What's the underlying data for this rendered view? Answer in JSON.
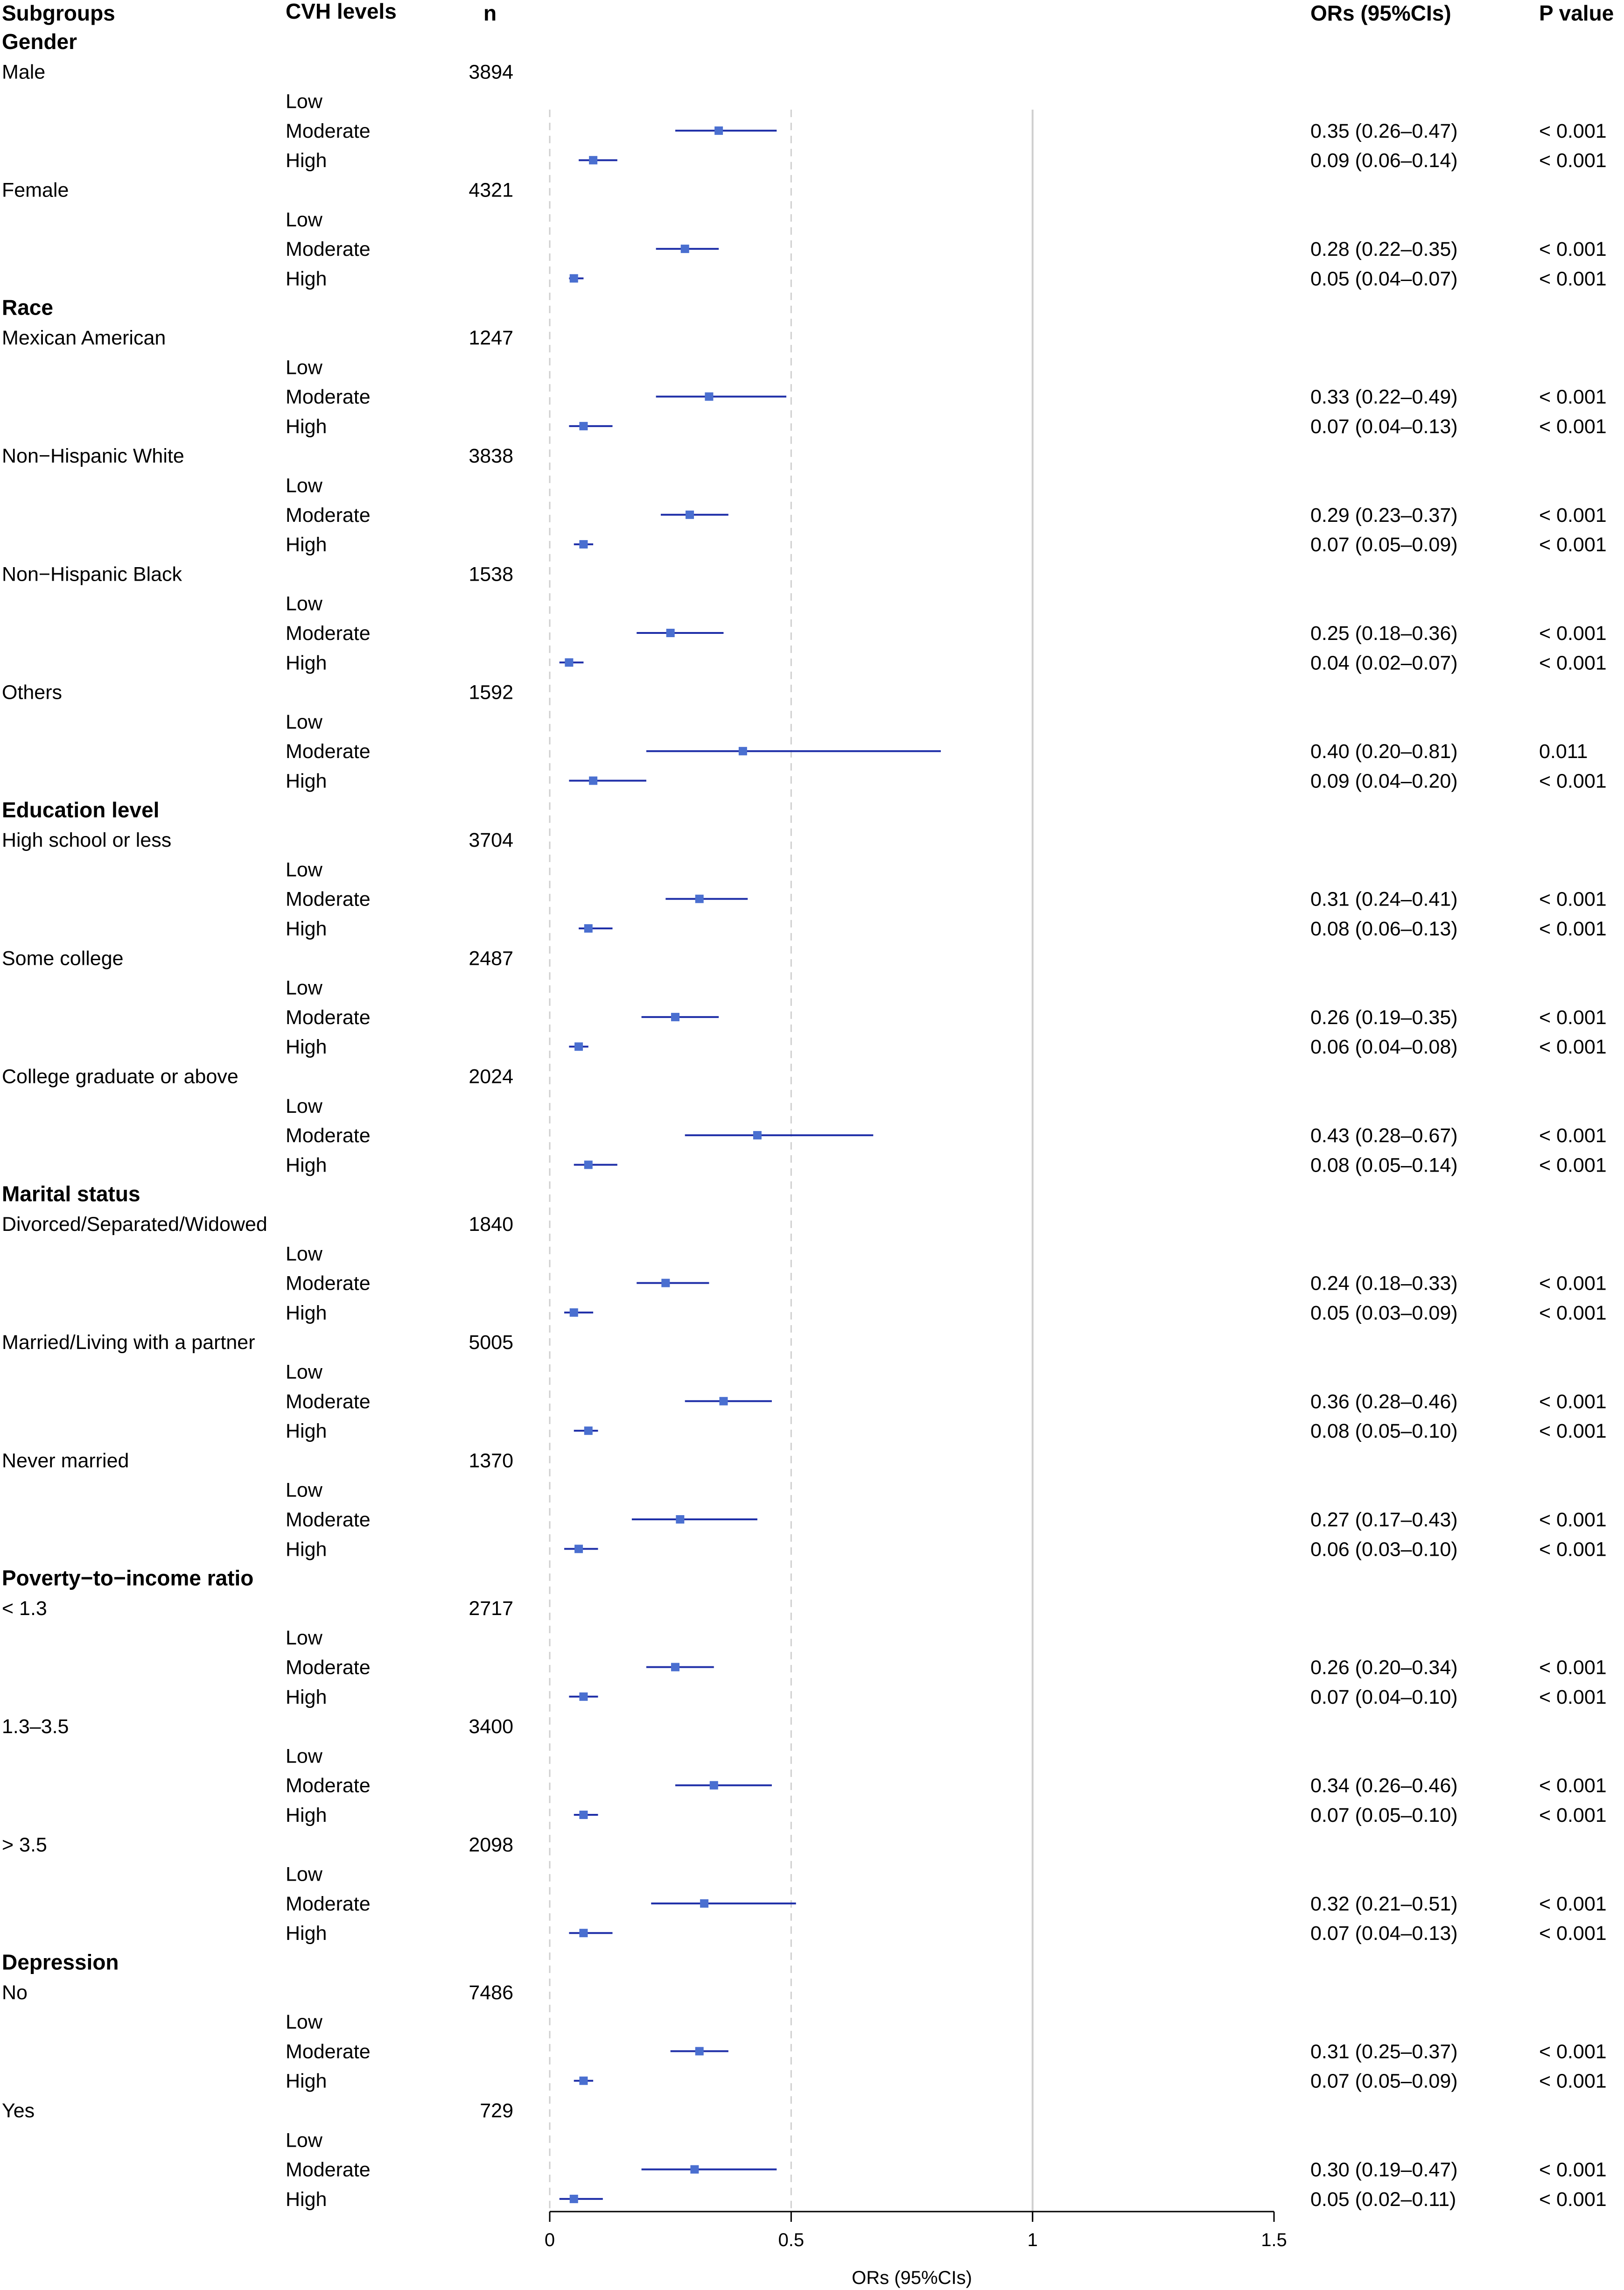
{
  "headers": {
    "subgroups": "Subgroups",
    "cvh_levels": "CVH levels",
    "n": "n",
    "ors": "ORs (95%CIs)",
    "p": "P value"
  },
  "chart_data": {
    "type": "forest",
    "xlabel": "ORs (95%CIs)",
    "xlim": [
      0,
      1.5
    ],
    "xticks": [
      0,
      0.5,
      1,
      1.5
    ],
    "xtick_labels": [
      "0",
      "0.5",
      "1",
      "1.5"
    ],
    "reference_line": 1,
    "dashed_lines": [
      0,
      0.5
    ],
    "marker_color": "#4a6fd0",
    "line_color": "#1f2fa8",
    "groups": [
      {
        "name": "Gender",
        "subgroups": [
          {
            "name": "Male",
            "n": "3894",
            "levels": [
              {
                "level": "Low"
              },
              {
                "level": "Moderate",
                "or": 0.35,
                "lo": 0.26,
                "hi": 0.47,
                "text": "0.35 (0.26–0.47)",
                "p": "< 0.001"
              },
              {
                "level": "High",
                "or": 0.09,
                "lo": 0.06,
                "hi": 0.14,
                "text": "0.09 (0.06–0.14)",
                "p": "< 0.001"
              }
            ]
          },
          {
            "name": "Female",
            "n": "4321",
            "levels": [
              {
                "level": "Low"
              },
              {
                "level": "Moderate",
                "or": 0.28,
                "lo": 0.22,
                "hi": 0.35,
                "text": "0.28 (0.22–0.35)",
                "p": "< 0.001"
              },
              {
                "level": "High",
                "or": 0.05,
                "lo": 0.04,
                "hi": 0.07,
                "text": "0.05 (0.04–0.07)",
                "p": "< 0.001"
              }
            ]
          }
        ]
      },
      {
        "name": "Race",
        "subgroups": [
          {
            "name": "Mexican American",
            "n": "1247",
            "levels": [
              {
                "level": "Low"
              },
              {
                "level": "Moderate",
                "or": 0.33,
                "lo": 0.22,
                "hi": 0.49,
                "text": "0.33 (0.22–0.49)",
                "p": "< 0.001"
              },
              {
                "level": "High",
                "or": 0.07,
                "lo": 0.04,
                "hi": 0.13,
                "text": "0.07 (0.04–0.13)",
                "p": "< 0.001"
              }
            ]
          },
          {
            "name": "Non−Hispanic White",
            "n": "3838",
            "levels": [
              {
                "level": "Low"
              },
              {
                "level": "Moderate",
                "or": 0.29,
                "lo": 0.23,
                "hi": 0.37,
                "text": "0.29 (0.23–0.37)",
                "p": "< 0.001"
              },
              {
                "level": "High",
                "or": 0.07,
                "lo": 0.05,
                "hi": 0.09,
                "text": "0.07 (0.05–0.09)",
                "p": "< 0.001"
              }
            ]
          },
          {
            "name": "Non−Hispanic Black",
            "n": "1538",
            "levels": [
              {
                "level": "Low"
              },
              {
                "level": "Moderate",
                "or": 0.25,
                "lo": 0.18,
                "hi": 0.36,
                "text": "0.25 (0.18–0.36)",
                "p": "< 0.001"
              },
              {
                "level": "High",
                "or": 0.04,
                "lo": 0.02,
                "hi": 0.07,
                "text": "0.04 (0.02–0.07)",
                "p": "< 0.001"
              }
            ]
          },
          {
            "name": "Others",
            "n": "1592",
            "levels": [
              {
                "level": "Low"
              },
              {
                "level": "Moderate",
                "or": 0.4,
                "lo": 0.2,
                "hi": 0.81,
                "text": "0.40 (0.20–0.81)",
                "p": "0.011"
              },
              {
                "level": "High",
                "or": 0.09,
                "lo": 0.04,
                "hi": 0.2,
                "text": "0.09 (0.04–0.20)",
                "p": "< 0.001"
              }
            ]
          }
        ]
      },
      {
        "name": "Education level",
        "subgroups": [
          {
            "name": "High school or less",
            "n": "3704",
            "levels": [
              {
                "level": "Low"
              },
              {
                "level": "Moderate",
                "or": 0.31,
                "lo": 0.24,
                "hi": 0.41,
                "text": "0.31 (0.24–0.41)",
                "p": "< 0.001"
              },
              {
                "level": "High",
                "or": 0.08,
                "lo": 0.06,
                "hi": 0.13,
                "text": "0.08 (0.06–0.13)",
                "p": "< 0.001"
              }
            ]
          },
          {
            "name": "Some college",
            "n": "2487",
            "levels": [
              {
                "level": "Low"
              },
              {
                "level": "Moderate",
                "or": 0.26,
                "lo": 0.19,
                "hi": 0.35,
                "text": "0.26 (0.19–0.35)",
                "p": "< 0.001"
              },
              {
                "level": "High",
                "or": 0.06,
                "lo": 0.04,
                "hi": 0.08,
                "text": "0.06 (0.04–0.08)",
                "p": "< 0.001"
              }
            ]
          },
          {
            "name": "College graduate or above",
            "n": "2024",
            "levels": [
              {
                "level": "Low"
              },
              {
                "level": "Moderate",
                "or": 0.43,
                "lo": 0.28,
                "hi": 0.67,
                "text": "0.43 (0.28–0.67)",
                "p": "< 0.001"
              },
              {
                "level": "High",
                "or": 0.08,
                "lo": 0.05,
                "hi": 0.14,
                "text": "0.08 (0.05–0.14)",
                "p": "< 0.001"
              }
            ]
          }
        ]
      },
      {
        "name": "Marital status",
        "subgroups": [
          {
            "name": "Divorced/Separated/Widowed",
            "n": "1840",
            "levels": [
              {
                "level": "Low"
              },
              {
                "level": "Moderate",
                "or": 0.24,
                "lo": 0.18,
                "hi": 0.33,
                "text": "0.24 (0.18–0.33)",
                "p": "< 0.001"
              },
              {
                "level": "High",
                "or": 0.05,
                "lo": 0.03,
                "hi": 0.09,
                "text": "0.05 (0.03–0.09)",
                "p": "< 0.001"
              }
            ]
          },
          {
            "name": "Married/Living with a partner",
            "n": "5005",
            "levels": [
              {
                "level": "Low"
              },
              {
                "level": "Moderate",
                "or": 0.36,
                "lo": 0.28,
                "hi": 0.46,
                "text": "0.36 (0.28–0.46)",
                "p": "< 0.001"
              },
              {
                "level": "High",
                "or": 0.08,
                "lo": 0.05,
                "hi": 0.1,
                "text": "0.08 (0.05–0.10)",
                "p": "< 0.001"
              }
            ]
          },
          {
            "name": "Never married",
            "n": "1370",
            "levels": [
              {
                "level": "Low"
              },
              {
                "level": "Moderate",
                "or": 0.27,
                "lo": 0.17,
                "hi": 0.43,
                "text": "0.27 (0.17–0.43)",
                "p": "< 0.001"
              },
              {
                "level": "High",
                "or": 0.06,
                "lo": 0.03,
                "hi": 0.1,
                "text": "0.06 (0.03–0.10)",
                "p": "< 0.001"
              }
            ]
          }
        ]
      },
      {
        "name": "Poverty−to−income ratio",
        "subgroups": [
          {
            "name": "< 1.3",
            "n": "2717",
            "levels": [
              {
                "level": "Low"
              },
              {
                "level": "Moderate",
                "or": 0.26,
                "lo": 0.2,
                "hi": 0.34,
                "text": "0.26 (0.20–0.34)",
                "p": "< 0.001"
              },
              {
                "level": "High",
                "or": 0.07,
                "lo": 0.04,
                "hi": 0.1,
                "text": "0.07 (0.04–0.10)",
                "p": "< 0.001"
              }
            ]
          },
          {
            "name": "1.3–3.5",
            "n": "3400",
            "levels": [
              {
                "level": "Low"
              },
              {
                "level": "Moderate",
                "or": 0.34,
                "lo": 0.26,
                "hi": 0.46,
                "text": "0.34 (0.26–0.46)",
                "p": "< 0.001"
              },
              {
                "level": "High",
                "or": 0.07,
                "lo": 0.05,
                "hi": 0.1,
                "text": "0.07 (0.05–0.10)",
                "p": "< 0.001"
              }
            ]
          },
          {
            "name": "> 3.5",
            "n": "2098",
            "levels": [
              {
                "level": "Low"
              },
              {
                "level": "Moderate",
                "or": 0.32,
                "lo": 0.21,
                "hi": 0.51,
                "text": "0.32 (0.21–0.51)",
                "p": "< 0.001"
              },
              {
                "level": "High",
                "or": 0.07,
                "lo": 0.04,
                "hi": 0.13,
                "text": "0.07 (0.04–0.13)",
                "p": "< 0.001"
              }
            ]
          }
        ]
      },
      {
        "name": "Depression",
        "subgroups": [
          {
            "name": "No",
            "n": "7486",
            "levels": [
              {
                "level": "Low"
              },
              {
                "level": "Moderate",
                "or": 0.31,
                "lo": 0.25,
                "hi": 0.37,
                "text": "0.31 (0.25–0.37)",
                "p": "< 0.001"
              },
              {
                "level": "High",
                "or": 0.07,
                "lo": 0.05,
                "hi": 0.09,
                "text": "0.07 (0.05–0.09)",
                "p": "< 0.001"
              }
            ]
          },
          {
            "name": "Yes",
            "n": "729",
            "levels": [
              {
                "level": "Low"
              },
              {
                "level": "Moderate",
                "or": 0.3,
                "lo": 0.19,
                "hi": 0.47,
                "text": "0.30 (0.19–0.47)",
                "p": "< 0.001"
              },
              {
                "level": "High",
                "or": 0.05,
                "lo": 0.02,
                "hi": 0.11,
                "text": "0.05 (0.02–0.11)",
                "p": "< 0.001"
              }
            ]
          }
        ]
      }
    ]
  }
}
